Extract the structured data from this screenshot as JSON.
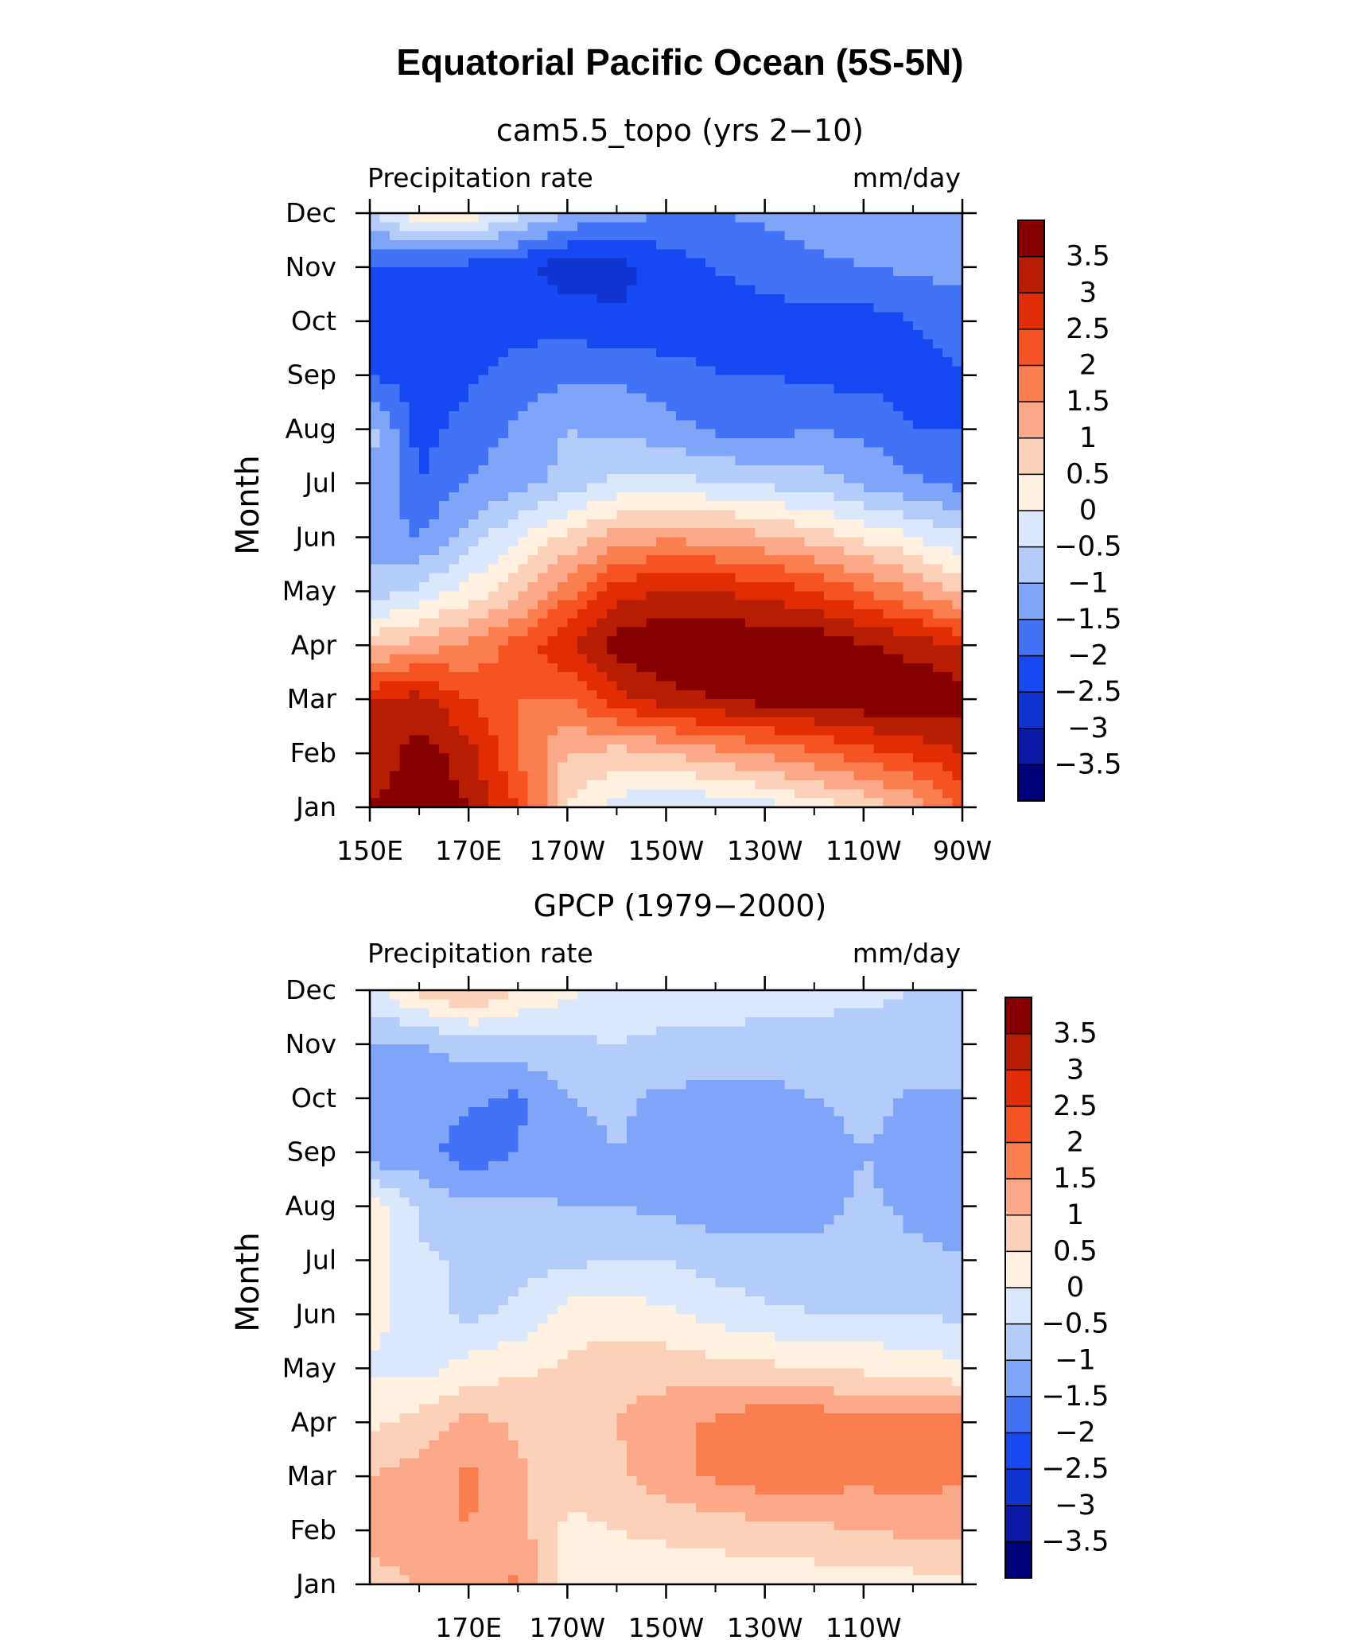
{
  "title": "Equatorial Pacific Ocean (5S-5N)",
  "palette": {
    "levels": [
      -3.5,
      -3,
      -2.5,
      -2,
      -1.5,
      -1,
      -0.5,
      0,
      0.5,
      1,
      1.5,
      2,
      2.5,
      3,
      3.5
    ],
    "level_labels": [
      "3.5",
      "3",
      "2.5",
      "2",
      "1.5",
      "1",
      "0.5",
      "0",
      "−0.5",
      "−1",
      "−1.5",
      "−2",
      "−2.5",
      "−3",
      "−3.5"
    ],
    "colors": [
      "#00007a",
      "#0a1aa6",
      "#0f34d0",
      "#1749f2",
      "#4272f5",
      "#7fa5f8",
      "#b4ccfa",
      "#dbe8fc",
      "#fff0e0",
      "#fdd1b8",
      "#fca98a",
      "#fa7e4f",
      "#f55322",
      "#e12d06",
      "#b71d03",
      "#870000"
    ]
  },
  "chart_data": [
    {
      "type": "heatmap",
      "title": "cam5.5_topo (yrs 2−10)",
      "left_label": "Precipitation rate",
      "right_label": "mm/day",
      "ylabel": "Month",
      "months": [
        "Jan",
        "Feb",
        "Mar",
        "Apr",
        "May",
        "Jun",
        "Jul",
        "Aug",
        "Sep",
        "Oct",
        "Nov",
        "Dec"
      ],
      "lon_ticks": [
        "150E",
        "170E",
        "170W",
        "150W",
        "130W",
        "110W",
        "90W"
      ],
      "xlim_deg_east": [
        150,
        270
      ],
      "lons": [
        150,
        160,
        170,
        180,
        190,
        200,
        210,
        220,
        230,
        240,
        250,
        260,
        270
      ],
      "values": [
        [
          3.5,
          4.0,
          3.5,
          2.5,
          0.5,
          -0.2,
          -0.5,
          -0.4,
          -0.2,
          0.2,
          0.6,
          1.2,
          2.0
        ],
        [
          3.0,
          3.8,
          3.2,
          2.0,
          1.0,
          0.8,
          1.0,
          1.3,
          1.6,
          1.9,
          2.3,
          2.6,
          3.0
        ],
        [
          3.0,
          3.2,
          2.5,
          2.0,
          2.0,
          2.8,
          3.3,
          3.5,
          3.7,
          3.8,
          3.9,
          4.0,
          3.8
        ],
        [
          0.8,
          1.2,
          1.6,
          2.2,
          3.0,
          3.8,
          4.0,
          4.0,
          3.9,
          3.9,
          3.6,
          3.3,
          3.0
        ],
        [
          -0.8,
          -0.4,
          0.2,
          0.8,
          1.8,
          2.8,
          3.0,
          3.0,
          2.8,
          2.5,
          2.0,
          1.5,
          0.8
        ],
        [
          -1.2,
          -1.5,
          -0.8,
          0.0,
          0.6,
          1.2,
          1.4,
          1.3,
          1.1,
          0.8,
          0.4,
          0.0,
          -0.4
        ],
        [
          -1.0,
          -2.0,
          -1.5,
          -1.2,
          -0.8,
          -0.4,
          -0.3,
          -0.5,
          -0.6,
          -0.8,
          -1.1,
          -1.4,
          -1.7
        ],
        [
          -0.8,
          -2.2,
          -1.8,
          -1.4,
          -1.0,
          -1.1,
          -1.3,
          -1.6,
          -1.7,
          -1.5,
          -1.6,
          -2.0,
          -2.0
        ],
        [
          -2.0,
          -2.3,
          -2.1,
          -1.8,
          -1.6,
          -1.6,
          -1.8,
          -2.0,
          -2.0,
          -2.1,
          -2.2,
          -2.2,
          -2.0
        ],
        [
          -2.4,
          -2.4,
          -2.3,
          -2.2,
          -2.2,
          -2.4,
          -2.3,
          -2.2,
          -2.2,
          -2.2,
          -2.2,
          -2.0,
          -1.8
        ],
        [
          -2.0,
          -2.2,
          -2.2,
          -2.4,
          -2.8,
          -2.7,
          -2.3,
          -2.0,
          -1.8,
          -1.6,
          -1.5,
          -1.4,
          -1.3
        ],
        [
          -0.5,
          0.3,
          0.4,
          -0.3,
          -1.0,
          -1.3,
          -1.5,
          -1.5,
          -1.4,
          -1.3,
          -1.2,
          -1.1,
          -1.0
        ]
      ]
    },
    {
      "type": "heatmap",
      "title": "GPCP (1979−2000)",
      "left_label": "Precipitation rate",
      "right_label": "mm/day",
      "ylabel": "Month",
      "months": [
        "Jan",
        "Feb",
        "Mar",
        "Apr",
        "May",
        "Jun",
        "Jul",
        "Aug",
        "Sep",
        "Oct",
        "Nov",
        "Dec"
      ],
      "lon_ticks": [
        "170E",
        "170W",
        "150W",
        "130W",
        "110W"
      ],
      "xlim_deg_east": [
        150,
        270
      ],
      "lons": [
        150,
        160,
        170,
        180,
        190,
        200,
        210,
        220,
        230,
        240,
        250,
        260,
        270
      ],
      "values": [
        [
          0.8,
          1.0,
          1.2,
          1.6,
          0.3,
          0.2,
          0.2,
          0.2,
          0.2,
          0.2,
          0.3,
          0.3,
          0.3
        ],
        [
          1.2,
          1.3,
          1.5,
          1.2,
          0.4,
          0.5,
          0.6,
          0.7,
          0.8,
          0.9,
          1.0,
          1.1,
          1.2
        ],
        [
          1.0,
          1.2,
          1.6,
          1.1,
          0.6,
          0.9,
          1.3,
          1.6,
          1.8,
          1.8,
          1.6,
          1.8,
          1.5
        ],
        [
          0.4,
          0.7,
          1.2,
          0.9,
          0.8,
          1.0,
          1.3,
          1.6,
          1.9,
          1.9,
          1.6,
          1.9,
          1.6
        ],
        [
          -0.1,
          -0.2,
          0.2,
          0.4,
          0.6,
          0.8,
          0.8,
          0.7,
          0.6,
          0.5,
          0.4,
          0.3,
          0.1
        ],
        [
          0.3,
          -0.4,
          -0.6,
          -0.4,
          0.2,
          0.3,
          0.1,
          -0.2,
          -0.4,
          -0.5,
          -0.5,
          -0.5,
          -0.6
        ],
        [
          0.4,
          -0.4,
          -0.6,
          -0.7,
          -0.6,
          -0.5,
          -0.5,
          -0.7,
          -0.8,
          -0.8,
          -0.8,
          -0.9,
          -1.0
        ],
        [
          0.3,
          -0.6,
          -0.9,
          -0.9,
          -1.0,
          -1.0,
          -1.1,
          -1.3,
          -1.2,
          -1.2,
          -0.9,
          -1.1,
          -1.1
        ],
        [
          -1.4,
          -1.3,
          -1.8,
          -1.5,
          -1.2,
          -1.0,
          -1.2,
          -1.4,
          -1.4,
          -1.3,
          -1.0,
          -1.2,
          -1.1
        ],
        [
          -1.2,
          -1.3,
          -1.4,
          -1.6,
          -1.0,
          -0.9,
          -1.1,
          -1.2,
          -1.2,
          -1.0,
          -0.8,
          -1.1,
          -1.1
        ],
        [
          -1.0,
          -1.0,
          -0.8,
          -0.7,
          -0.6,
          -0.5,
          -0.6,
          -0.6,
          -0.6,
          -0.6,
          -0.7,
          -0.7,
          -0.7
        ],
        [
          -0.2,
          0.6,
          1.2,
          0.5,
          0.1,
          -0.2,
          -0.3,
          -0.3,
          -0.4,
          -0.4,
          -0.4,
          -0.5,
          -0.5
        ]
      ]
    }
  ]
}
